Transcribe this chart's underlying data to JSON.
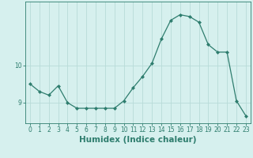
{
  "xlabel": "Humidex (Indice chaleur)",
  "ylabel": "",
  "x_values": [
    0,
    1,
    2,
    3,
    4,
    5,
    6,
    7,
    8,
    9,
    10,
    11,
    12,
    13,
    14,
    15,
    16,
    17,
    18,
    19,
    20,
    21,
    22,
    23
  ],
  "y_values": [
    9.5,
    9.3,
    9.2,
    9.45,
    9.0,
    8.85,
    8.85,
    8.85,
    8.85,
    8.85,
    9.05,
    9.4,
    9.7,
    10.05,
    10.7,
    11.2,
    11.35,
    11.3,
    11.15,
    10.55,
    10.35,
    10.35,
    9.05,
    8.65
  ],
  "line_color": "#2e7d6e",
  "marker": "D",
  "marker_size": 2,
  "bg_color": "#d6f0ee",
  "grid_color": "#b8dbd8",
  "axis_color": "#2e7d6e",
  "tick_color": "#2e7d6e",
  "label_color": "#2e7d6e",
  "yticks": [
    9,
    10
  ],
  "ylim": [
    8.45,
    11.7
  ],
  "xlim": [
    -0.5,
    23.5
  ],
  "tick_fontsize": 5.5,
  "label_fontsize": 7.5
}
